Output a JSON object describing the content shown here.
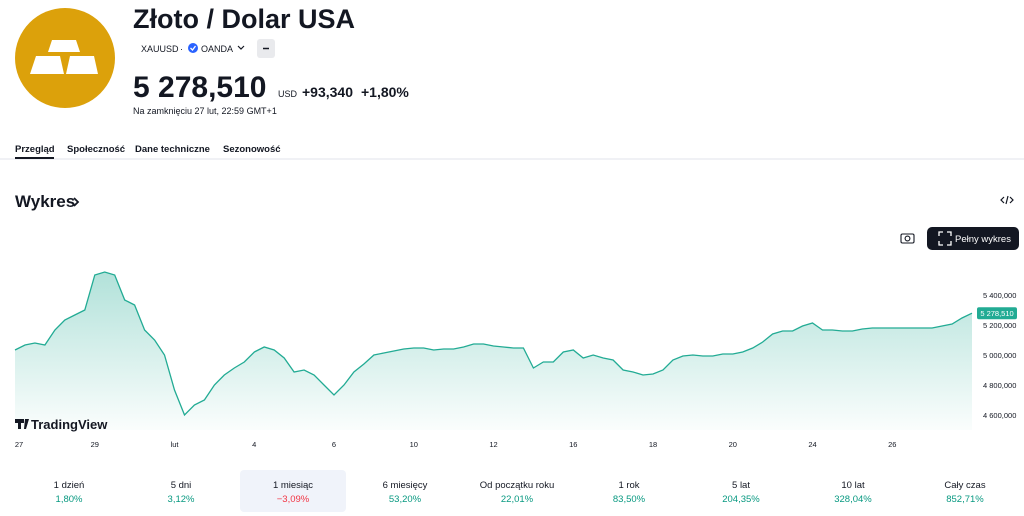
{
  "header": {
    "title": "Złoto / Dolar USA",
    "symbol": "XAUUSD",
    "separator": "·",
    "exchange": "OANDA",
    "price": "5 278,510",
    "currency": "USD",
    "change": "+93,340",
    "change_percent": "+1,80%",
    "status": "Na zamknięciu 27 lut, 22:59 GMT+1"
  },
  "tabs": [
    "Przegląd",
    "Społeczność",
    "Dane techniczne",
    "Sezonowość"
  ],
  "section_title": "Wykres",
  "full_chart_button": "Pełny wykres",
  "branding": "TradingView",
  "chart_data": {
    "type": "line",
    "color": "#22ab94",
    "values": [
      5033000,
      5067000,
      5080000,
      5067000,
      5167000,
      5233000,
      5267000,
      5300000,
      5533000,
      5553000,
      5533000,
      5367000,
      5333000,
      5167000,
      5100000,
      5000000,
      4767000,
      4600000,
      4667000,
      4700000,
      4800000,
      4867000,
      4913000,
      4953000,
      5020000,
      5053000,
      5033000,
      4980000,
      4887000,
      4900000,
      4867000,
      4800000,
      4733000,
      4800000,
      4887000,
      4940000,
      5000000,
      5013000,
      5027000,
      5040000,
      5047000,
      5047000,
      5033000,
      5040000,
      5040000,
      5053000,
      5073000,
      5073000,
      5060000,
      5053000,
      5047000,
      5047000,
      4913000,
      4953000,
      4953000,
      5020000,
      5033000,
      4980000,
      5000000,
      4980000,
      4967000,
      4900000,
      4887000,
      4867000,
      4873000,
      4900000,
      4967000,
      4993000,
      5000000,
      4993000,
      4993000,
      5007000,
      5007000,
      5020000,
      5047000,
      5087000,
      5140000,
      5160000,
      5160000,
      5193000,
      5213000,
      5167000,
      5167000,
      5160000,
      5160000,
      5173000,
      5180000,
      5180000,
      5180000,
      5180000,
      5180000,
      5180000,
      5180000,
      5193000,
      5207000,
      5247000,
      5278510
    ],
    "xlim": [
      0,
      96
    ],
    "xticks": [
      {
        "value": 0,
        "label": "27"
      },
      {
        "value": 8,
        "label": "29"
      },
      {
        "value": 16,
        "label": "lut"
      },
      {
        "value": 24,
        "label": "4"
      },
      {
        "value": 32,
        "label": "6"
      },
      {
        "value": 40,
        "label": "10"
      },
      {
        "value": 48,
        "label": "12"
      },
      {
        "value": 56,
        "label": "16"
      },
      {
        "value": 64,
        "label": "18"
      },
      {
        "value": 72,
        "label": "20"
      },
      {
        "value": 80,
        "label": "24"
      },
      {
        "value": 88,
        "label": "26"
      }
    ],
    "ylim": [
      4500000,
      5650000
    ],
    "yticks": [
      {
        "value": 4600000,
        "label": "4 600,000"
      },
      {
        "value": 4800000,
        "label": "4 800,000"
      },
      {
        "value": 5000000,
        "label": "5 000,000"
      },
      {
        "value": 5200000,
        "label": "5 200,000"
      },
      {
        "value": 5400000,
        "label": "5 400,000"
      }
    ]
  },
  "periods": [
    {
      "label": "1 dzień",
      "change": "1,80%"
    },
    {
      "label": "5 dni",
      "change": "3,12%"
    },
    {
      "label": "1 miesiąc",
      "change": "−3,09%"
    },
    {
      "label": "6 miesięcy",
      "change": "53,20%"
    },
    {
      "label": "Od początku roku",
      "change": "22,01%"
    },
    {
      "label": "1 rok",
      "change": "83,50%"
    },
    {
      "label": "5 lat",
      "change": "204,35%"
    },
    {
      "label": "10 lat",
      "change": "328,04%"
    },
    {
      "label": "Cały czas",
      "change": "852,71%"
    }
  ]
}
